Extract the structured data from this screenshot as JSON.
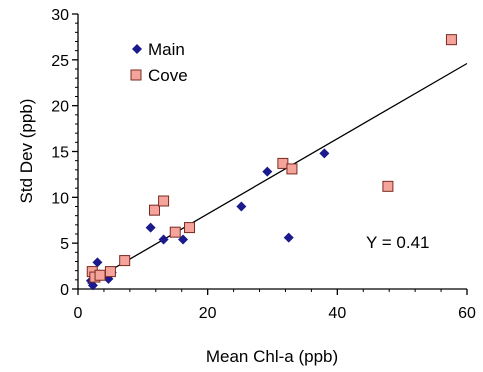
{
  "chart_data": {
    "type": "scatter",
    "title": "",
    "xlabel": "Mean Chl-a (ppb)",
    "ylabel": "Std Dev (ppb)",
    "xlim": [
      0,
      60
    ],
    "ylim": [
      0,
      30
    ],
    "xticks": [
      0,
      20,
      40,
      60
    ],
    "yticks": [
      0,
      5,
      10,
      15,
      20,
      25,
      30
    ],
    "grid": false,
    "legend_position": "top-left",
    "series": [
      {
        "name": "Main",
        "marker": "diamond",
        "color": "#1a1a8c",
        "x": [
          2.0,
          2.3,
          2.6,
          3.0,
          3.3,
          4.7,
          5.2,
          11.2,
          13.2,
          16.2,
          25.2,
          29.2,
          32.5,
          38.0
        ],
        "y": [
          0.9,
          0.4,
          1.2,
          2.9,
          1.6,
          1.1,
          1.8,
          6.7,
          5.4,
          5.4,
          9.0,
          12.8,
          5.6,
          14.8
        ]
      },
      {
        "name": "Cove",
        "marker": "square",
        "color": "#f4a49a",
        "x": [
          2.2,
          2.6,
          3.4,
          5.0,
          7.2,
          11.8,
          13.2,
          15.0,
          17.2,
          31.6,
          33.0,
          47.8,
          57.6
        ],
        "y": [
          1.9,
          1.3,
          1.5,
          1.9,
          3.1,
          8.6,
          9.6,
          6.2,
          6.7,
          13.7,
          13.1,
          11.2,
          27.2
        ]
      }
    ],
    "trendline": {
      "x": [
        1.5,
        60
      ],
      "y": [
        0.6,
        24.6
      ]
    },
    "annotation": "Y = 0.41"
  }
}
